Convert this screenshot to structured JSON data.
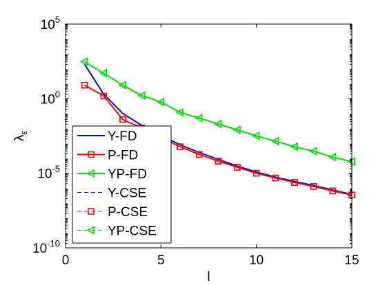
{
  "chart_data": {
    "type": "line",
    "title": "",
    "xlabel": "l",
    "ylabel": "λ_ε",
    "ylabel_main": "λ",
    "ylabel_sub": "ε",
    "xlim": [
      0,
      15
    ],
    "ylim": [
      1e-10,
      100000.0
    ],
    "yscale": "log",
    "grid": false,
    "legend_position": "bottom-left",
    "x_ticks": [
      {
        "value": 0,
        "label": "0"
      },
      {
        "value": 5,
        "label": "5"
      },
      {
        "value": 10,
        "label": "10"
      },
      {
        "value": 15,
        "label": "15"
      }
    ],
    "y_ticks": [
      {
        "value": 100000.0,
        "base": "10",
        "exp": "5"
      },
      {
        "value": 1.0,
        "base": "10",
        "exp": "0"
      },
      {
        "value": 1e-05,
        "base": "10",
        "exp": "-5"
      },
      {
        "value": 1e-10,
        "base": "10",
        "exp": "-10"
      }
    ],
    "series": [
      {
        "name": "Y-FD",
        "color": "#0000ff",
        "style": "solid",
        "marker": "none",
        "x": [
          1,
          2,
          3,
          4,
          5,
          6,
          7,
          8,
          9,
          10,
          11,
          12,
          13,
          14,
          15
        ],
        "y": [
          200,
          2,
          0.1,
          0.016,
          0.0035,
          0.0008,
          0.00025,
          8.5e-05,
          3e-05,
          1.2e-05,
          5.5e-06,
          2.8e-06,
          1.5e-06,
          7.5e-07,
          3.8e-07
        ]
      },
      {
        "name": "P-FD",
        "color": "#ff0000",
        "style": "solid",
        "marker": "square",
        "x": [
          1,
          2,
          3,
          4,
          5,
          6,
          7,
          8,
          9,
          10,
          11,
          12,
          13,
          14,
          15
        ],
        "y": [
          8,
          1.5,
          0.04,
          0.011,
          0.0025,
          0.0006,
          0.00018,
          6.5e-05,
          2.5e-05,
          1e-05,
          4.8e-06,
          2.4e-06,
          1.3e-06,
          6.5e-07,
          3.5e-07
        ]
      },
      {
        "name": "YP-FD",
        "color": "#00dd00",
        "style": "solid",
        "marker": "triangle-left",
        "x": [
          1,
          2,
          3,
          4,
          5,
          6,
          7,
          8,
          9,
          10,
          11,
          12,
          13,
          14,
          15
        ],
        "y": [
          300,
          50,
          8,
          1.6,
          0.6,
          0.12,
          0.05,
          0.02,
          0.008,
          0.0032,
          0.0014,
          0.0006,
          0.0003,
          0.00012,
          6e-05
        ]
      },
      {
        "name": "Y-CSE",
        "color": "#0000ff",
        "style": "dashed",
        "marker": "none",
        "x": [
          1,
          2,
          3,
          4,
          5,
          6,
          7,
          8,
          9,
          10,
          11,
          12,
          13,
          14,
          15
        ],
        "y": [
          200,
          2,
          0.1,
          0.016,
          0.0035,
          0.0008,
          0.00025,
          8.5e-05,
          3e-05,
          1.2e-05,
          5.5e-06,
          2.8e-06,
          1.5e-06,
          7.5e-07,
          3.8e-07
        ]
      },
      {
        "name": "P-CSE",
        "color": "#ff0000",
        "style": "dashed",
        "marker": "square",
        "x": [
          1,
          2,
          3,
          4,
          5,
          6,
          7,
          8,
          9,
          10,
          11,
          12,
          13,
          14,
          15
        ],
        "y": [
          8,
          1.5,
          0.04,
          0.011,
          0.0025,
          0.0006,
          0.00018,
          6.5e-05,
          2.5e-05,
          1e-05,
          4.8e-06,
          2.4e-06,
          1.3e-06,
          6.5e-07,
          3.5e-07
        ]
      },
      {
        "name": "YP-CSE",
        "color": "#00dd00",
        "style": "dashed",
        "marker": "triangle-left",
        "x": [
          1,
          2,
          3,
          4,
          5,
          6,
          7,
          8,
          9,
          10,
          11,
          12,
          13,
          14,
          15
        ],
        "y": [
          300,
          50,
          8,
          1.6,
          0.6,
          0.12,
          0.05,
          0.02,
          0.008,
          0.0032,
          0.0014,
          0.0006,
          0.0003,
          0.00012,
          6e-05
        ]
      }
    ]
  }
}
